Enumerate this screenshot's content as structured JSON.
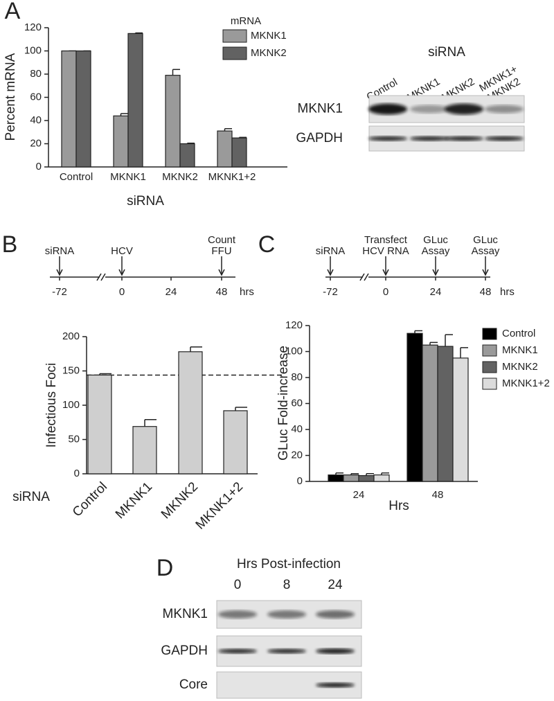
{
  "chart_data": [
    {
      "type": "bar",
      "panel": "A",
      "ylabel": "Percent mRNA",
      "xlabel": "siRNA",
      "legend_title": "mRNA",
      "categories": [
        "Control",
        "MKNK1",
        "MKNK2",
        "MKNK1+2"
      ],
      "series": [
        {
          "name": "MKNK1",
          "color": "#9a9a9a",
          "values": [
            100,
            44,
            79,
            31
          ],
          "errors": [
            0,
            2,
            5,
            2
          ]
        },
        {
          "name": "MKNK2",
          "color": "#626262",
          "values": [
            100,
            115,
            20,
            25
          ],
          "errors": [
            0,
            0.5,
            0.5,
            0.5
          ]
        }
      ],
      "ylim": [
        0,
        120
      ],
      "yticks": [
        0,
        20,
        40,
        60,
        80,
        100,
        120
      ]
    },
    {
      "type": "bar",
      "panel": "B",
      "ylabel": "Infectious Foci",
      "xlabel": "siRNA",
      "categories": [
        "Control",
        "MKNK1",
        "MKNK2",
        "MKNK1+2"
      ],
      "values": [
        144,
        69,
        178,
        92
      ],
      "errors": [
        2,
        10,
        7,
        5
      ],
      "color": "#cfcfcf",
      "reference_line": 144,
      "ylim": [
        0,
        200
      ],
      "yticks": [
        0,
        50,
        100,
        150,
        200
      ]
    },
    {
      "type": "bar",
      "panel": "C",
      "ylabel": "GLuc Fold-increase",
      "xlabel": "Hrs",
      "categories": [
        "24",
        "48"
      ],
      "series": [
        {
          "name": "Control",
          "color": "#000000",
          "values": [
            5,
            114
          ],
          "errors": [
            1.5,
            2
          ]
        },
        {
          "name": "MKNK1",
          "color": "#9a9a9a",
          "values": [
            5,
            105
          ],
          "errors": [
            1,
            2
          ]
        },
        {
          "name": "MKNK2",
          "color": "#626262",
          "values": [
            4.5,
            104
          ],
          "errors": [
            1.5,
            9
          ]
        },
        {
          "name": "MKNK1+2",
          "color": "#dcdcdc",
          "values": [
            5,
            95
          ],
          "errors": [
            1.5,
            8
          ]
        }
      ],
      "ylim": [
        0,
        120
      ],
      "yticks": [
        0,
        20,
        40,
        60,
        80,
        100,
        120
      ]
    }
  ],
  "timelines": [
    {
      "events": [
        {
          "label": [
            "siRNA"
          ],
          "tick": "-72"
        },
        {
          "label": [
            "HCV"
          ],
          "tick": "0"
        },
        {
          "label": [],
          "tick": "24"
        },
        {
          "label": [
            "Count",
            "FFU"
          ],
          "tick": "48"
        }
      ],
      "unit": "hrs"
    },
    {
      "events": [
        {
          "label": [
            "siRNA"
          ],
          "tick": "-72"
        },
        {
          "label": [
            "Transfect",
            "HCV RNA"
          ],
          "tick": "0"
        },
        {
          "label": [
            "GLuc",
            "Assay"
          ],
          "tick": "24"
        },
        {
          "label": [
            "GLuc",
            "Assay"
          ],
          "tick": "48"
        }
      ],
      "unit": "hrs"
    }
  ],
  "blots": [
    {
      "title": "siRNA",
      "lanes": [
        [
          "Control"
        ],
        [
          "MKNK1"
        ],
        [
          "MKNK2"
        ],
        [
          "MKNK1+",
          "MKNK2"
        ]
      ],
      "rows": [
        "MKNK1",
        "GAPDH"
      ]
    },
    {
      "panel": "D",
      "title": "Hrs Post-infection",
      "lanes": [
        [
          "0"
        ],
        [
          "8"
        ],
        [
          "24"
        ]
      ],
      "rows": [
        "MKNK1",
        "GAPDH",
        "Core"
      ]
    }
  ]
}
